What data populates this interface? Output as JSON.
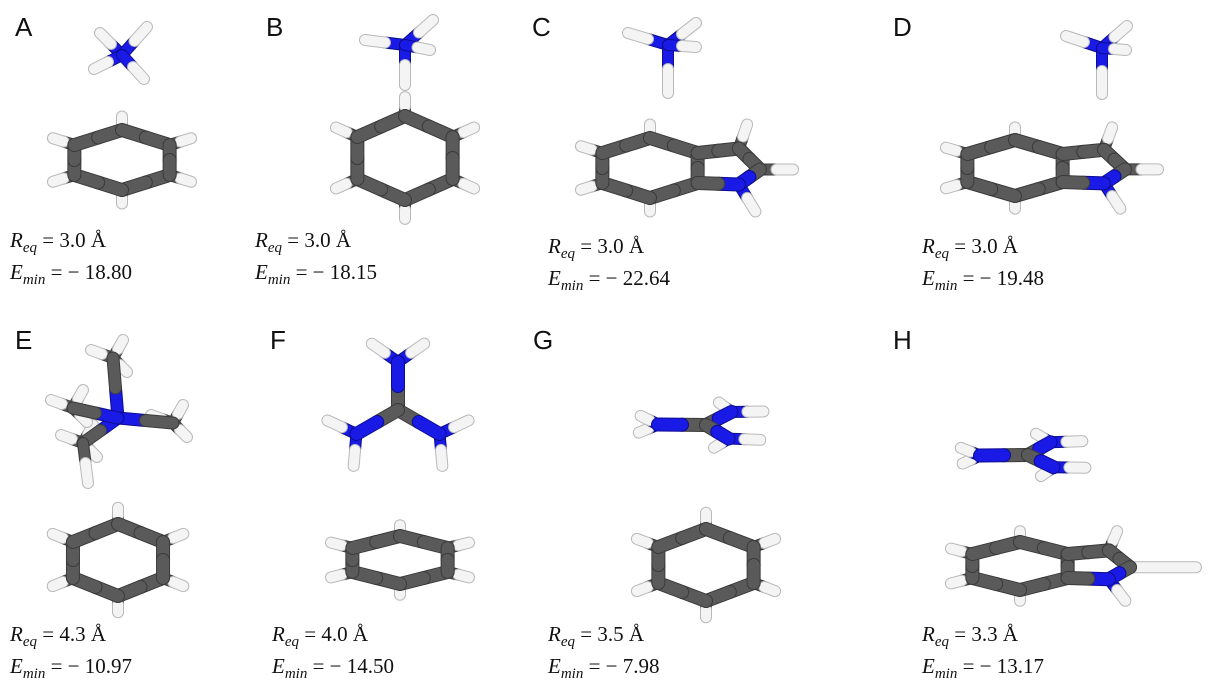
{
  "panels": [
    {
      "label": "A",
      "r_symbol": "R",
      "r_subscript": "eq",
      "r_text": "= 3.0 Å",
      "e_symbol": "E",
      "e_subscript": "min",
      "e_text": "= − 18.80"
    },
    {
      "label": "B",
      "r_symbol": "R",
      "r_subscript": "eq",
      "r_text": "= 3.0 Å",
      "e_symbol": "E",
      "e_subscript": "min",
      "e_text": "= − 18.15"
    },
    {
      "label": "C",
      "r_symbol": "R",
      "r_subscript": "eq",
      "r_text": "= 3.0 Å",
      "e_symbol": "E",
      "e_subscript": "min",
      "e_text": "= − 22.64"
    },
    {
      "label": "D",
      "r_symbol": "R",
      "r_subscript": "eq",
      "r_text": "= 3.0 Å",
      "e_symbol": "E",
      "e_subscript": "min",
      "e_text": "= − 19.48"
    },
    {
      "label": "E",
      "r_symbol": "R",
      "r_subscript": "eq",
      "r_text": "= 4.3 Å",
      "e_symbol": "E",
      "e_subscript": "min",
      "e_text": "= − 10.97"
    },
    {
      "label": "F",
      "r_symbol": "R",
      "r_subscript": "eq",
      "r_text": "= 4.0 Å",
      "e_symbol": "E",
      "e_subscript": "min",
      "e_text": "= − 14.50"
    },
    {
      "label": "G",
      "r_symbol": "R",
      "r_subscript": "eq",
      "r_text": "= 3.5 Å",
      "e_symbol": "E",
      "e_subscript": "min",
      "e_text": "= − 7.98"
    },
    {
      "label": "H",
      "r_symbol": "R",
      "r_subscript": "eq",
      "r_text": "= 3.3 Å",
      "e_symbol": "E",
      "e_subscript": "min",
      "e_text": "= − 13.17"
    }
  ]
}
